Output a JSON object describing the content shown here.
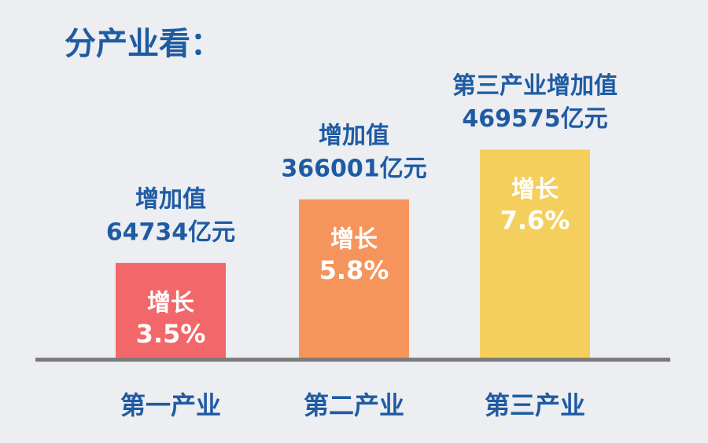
{
  "chart_data": {
    "type": "bar",
    "title": "分产业看：",
    "categories": [
      "第一产业",
      "第二产业",
      "第三产业"
    ],
    "values": [
      3.5,
      5.8,
      7.6
    ],
    "value_labels": [
      "3.5%",
      "5.8%",
      "7.6%"
    ],
    "value_caption": "增长",
    "colors": [
      "#f2676a",
      "#f5955c",
      "#f4cf5e"
    ],
    "annotations": [
      "增加值",
      "增加值",
      "第三产业增加值"
    ],
    "added_values": [
      64734,
      366001,
      469575
    ],
    "added_value_labels": [
      "64734亿元",
      "366001亿元",
      "469575亿元"
    ],
    "ylim": [
      0,
      10
    ]
  }
}
